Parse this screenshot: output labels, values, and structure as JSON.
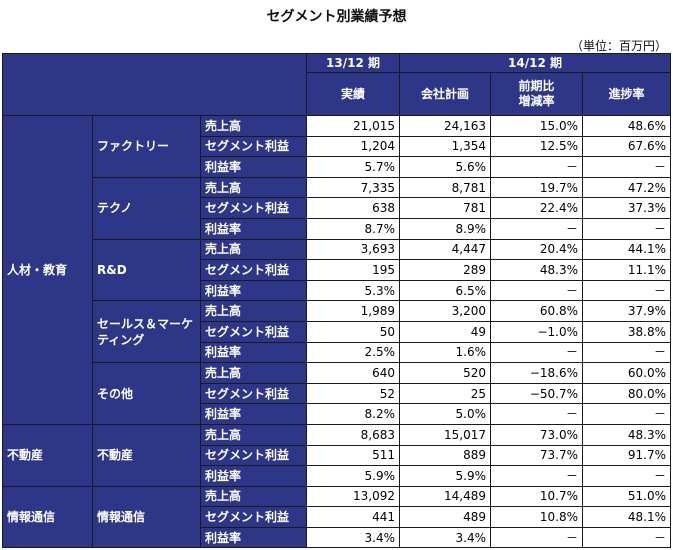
{
  "title": "セグメント別業績予想",
  "unit": "（単位：百万円）",
  "header": {
    "period_13": "13/12 期",
    "period_14": "14/12 期",
    "col_actual": "実績",
    "col_plan": "会社計画",
    "col_yoy": "前期比\n増減率",
    "col_progress": "進捗率"
  },
  "groups": [
    {
      "name": "人材・教育",
      "subs": [
        {
          "name": "ファクトリー",
          "rows": [
            {
              "label": "売上高",
              "actual": "21,015",
              "plan": "24,163",
              "yoy": "15.0%",
              "progress": "48.6%"
            },
            {
              "label": "セグメント利益",
              "actual": "1,204",
              "plan": "1,354",
              "yoy": "12.5%",
              "progress": "67.6%"
            },
            {
              "label": "利益率",
              "actual": "5.7%",
              "plan": "5.6%",
              "yoy": "－",
              "progress": "－"
            }
          ]
        },
        {
          "name": "テクノ",
          "rows": [
            {
              "label": "売上高",
              "actual": "7,335",
              "plan": "8,781",
              "yoy": "19.7%",
              "progress": "47.2%"
            },
            {
              "label": "セグメント利益",
              "actual": "638",
              "plan": "781",
              "yoy": "22.4%",
              "progress": "37.3%"
            },
            {
              "label": "利益率",
              "actual": "8.7%",
              "plan": "8.9%",
              "yoy": "－",
              "progress": "－"
            }
          ]
        },
        {
          "name": "R&D",
          "rows": [
            {
              "label": "売上高",
              "actual": "3,693",
              "plan": "4,447",
              "yoy": "20.4%",
              "progress": "44.1%"
            },
            {
              "label": "セグメント利益",
              "actual": "195",
              "plan": "289",
              "yoy": "48.3%",
              "progress": "11.1%"
            },
            {
              "label": "利益率",
              "actual": "5.3%",
              "plan": "6.5%",
              "yoy": "－",
              "progress": "－"
            }
          ]
        },
        {
          "name": "セールス＆マーケティング",
          "rows": [
            {
              "label": "売上高",
              "actual": "1,989",
              "plan": "3,200",
              "yoy": "60.8%",
              "progress": "37.9%"
            },
            {
              "label": "セグメント利益",
              "actual": "50",
              "plan": "49",
              "yoy": "−1.0%",
              "progress": "38.8%"
            },
            {
              "label": "利益率",
              "actual": "2.5%",
              "plan": "1.6%",
              "yoy": "－",
              "progress": "－"
            }
          ]
        },
        {
          "name": "その他",
          "rows": [
            {
              "label": "売上高",
              "actual": "640",
              "plan": "520",
              "yoy": "−18.6%",
              "progress": "60.0%"
            },
            {
              "label": "セグメント利益",
              "actual": "52",
              "plan": "25",
              "yoy": "−50.7%",
              "progress": "80.0%"
            },
            {
              "label": "利益率",
              "actual": "8.2%",
              "plan": "5.0%",
              "yoy": "－",
              "progress": "－"
            }
          ]
        }
      ]
    },
    {
      "name": "不動産",
      "subs": [
        {
          "name": "不動産",
          "rows": [
            {
              "label": "売上高",
              "actual": "8,683",
              "plan": "15,017",
              "yoy": "73.0%",
              "progress": "48.3%"
            },
            {
              "label": "セグメント利益",
              "actual": "511",
              "plan": "889",
              "yoy": "73.7%",
              "progress": "91.7%"
            },
            {
              "label": "利益率",
              "actual": "5.9%",
              "plan": "5.9%",
              "yoy": "－",
              "progress": "－"
            }
          ]
        }
      ]
    },
    {
      "name": "情報通信",
      "subs": [
        {
          "name": "情報通信",
          "rows": [
            {
              "label": "売上高",
              "actual": "13,092",
              "plan": "14,489",
              "yoy": "10.7%",
              "progress": "51.0%"
            },
            {
              "label": "セグメント利益",
              "actual": "441",
              "plan": "489",
              "yoy": "10.8%",
              "progress": "48.1%"
            },
            {
              "label": "利益率",
              "actual": "3.4%",
              "plan": "3.4%",
              "yoy": "－",
              "progress": "－"
            }
          ]
        }
      ]
    }
  ]
}
